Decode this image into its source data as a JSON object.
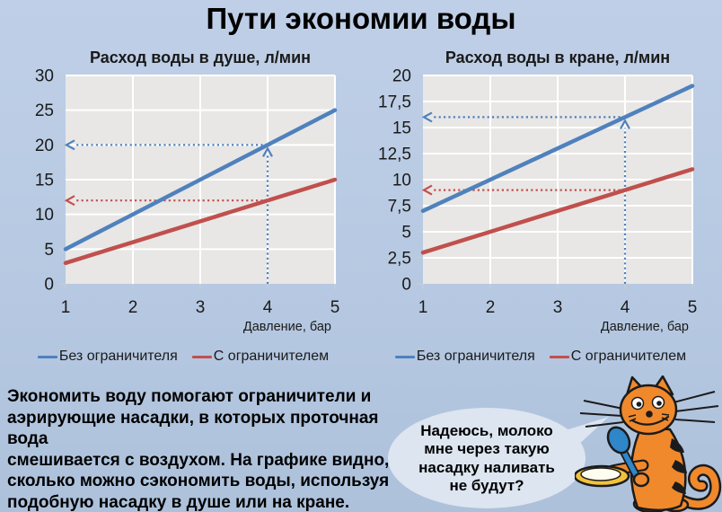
{
  "page": {
    "title": "Пути экономии воды",
    "background": "#b7c9e2"
  },
  "colors": {
    "blue": "#4f81bd",
    "red": "#c0504d",
    "plot_bg": "#e8e7e5",
    "grid": "#ffffff",
    "tick": "#c3cbd6",
    "bubble": "#dce5f0",
    "cat_orange": "#f0892c",
    "spoon_blue": "#2f86c8",
    "saucer_yellow": "#f2c23d",
    "milk_white": "#fffcf0"
  },
  "chart_data": [
    {
      "type": "line",
      "title": "Расход воды в душе, л/мин",
      "xlabel": "Давление, бар",
      "ylabel": "",
      "xlim": [
        1,
        5
      ],
      "ylim": [
        0,
        30
      ],
      "x_ticks": [
        1,
        2,
        3,
        4,
        5
      ],
      "x_tick_labels": [
        "1",
        "2",
        "3",
        "4",
        "5"
      ],
      "y_ticks": [
        0,
        5,
        10,
        15,
        20,
        25,
        30
      ],
      "y_tick_labels": [
        "0",
        "5",
        "10",
        "15",
        "20",
        "25",
        "30"
      ],
      "grid": true,
      "legend_position": "bottom",
      "series": [
        {
          "name": "Без ограничителя",
          "color": "#4f81bd",
          "points": [
            [
              1,
              5
            ],
            [
              5,
              25
            ]
          ]
        },
        {
          "name": "С ограничителем",
          "color": "#c0504d",
          "points": [
            [
              1,
              3
            ],
            [
              5,
              15
            ]
          ]
        }
      ],
      "annotations": [
        {
          "kind": "v-arrow",
          "x": 4,
          "y_from": 0,
          "y_to": 20,
          "color": "#4f81bd"
        },
        {
          "kind": "h-arrow",
          "y": 20,
          "x_from": 4,
          "x_to": 1,
          "color": "#4f81bd"
        },
        {
          "kind": "h-arrow",
          "y": 12,
          "x_from": 4,
          "x_to": 1,
          "color": "#c0504d"
        }
      ]
    },
    {
      "type": "line",
      "title": "Расход воды в кране, л/мин",
      "xlabel": "Давление, бар",
      "ylabel": "",
      "xlim": [
        1,
        5
      ],
      "ylim": [
        0,
        20
      ],
      "x_ticks": [
        1,
        2,
        3,
        4,
        5
      ],
      "x_tick_labels": [
        "1",
        "2",
        "3",
        "4",
        "5"
      ],
      "y_ticks": [
        0,
        2.5,
        5,
        7.5,
        10,
        12.5,
        15,
        17.5,
        20
      ],
      "y_tick_labels": [
        "0",
        "2,5",
        "5",
        "7,5",
        "10",
        "12,5",
        "15",
        "17,5",
        "20"
      ],
      "grid": true,
      "legend_position": "bottom",
      "series": [
        {
          "name": "Без ограничителя",
          "color": "#4f81bd",
          "points": [
            [
              1,
              7
            ],
            [
              5,
              19
            ]
          ]
        },
        {
          "name": "С ограничителем",
          "color": "#c0504d",
          "points": [
            [
              1,
              3
            ],
            [
              5,
              11
            ]
          ]
        }
      ],
      "annotations": [
        {
          "kind": "v-arrow",
          "x": 4,
          "y_from": 0,
          "y_to": 16,
          "color": "#4f81bd"
        },
        {
          "kind": "h-arrow",
          "y": 16,
          "x_from": 4,
          "x_to": 1,
          "color": "#4f81bd"
        },
        {
          "kind": "h-arrow",
          "y": 9,
          "x_from": 4,
          "x_to": 1,
          "color": "#c0504d"
        }
      ]
    }
  ],
  "note": {
    "text": "Экономить воду помогают ограничители  и\nаэрирующие насадки, в которых проточная вода\nсмешивается с воздухом. На графике видно,\nсколько можно сэкономить воды, используя\nподобную насадку в душе или на кране."
  },
  "speech_bubble": {
    "text": "Надеюсь, молоко\nмне через такую\nнасадку наливать\nне будут?"
  },
  "cat": {
    "description": "striped-orange-cat-holding-saucer-and-spoon"
  }
}
